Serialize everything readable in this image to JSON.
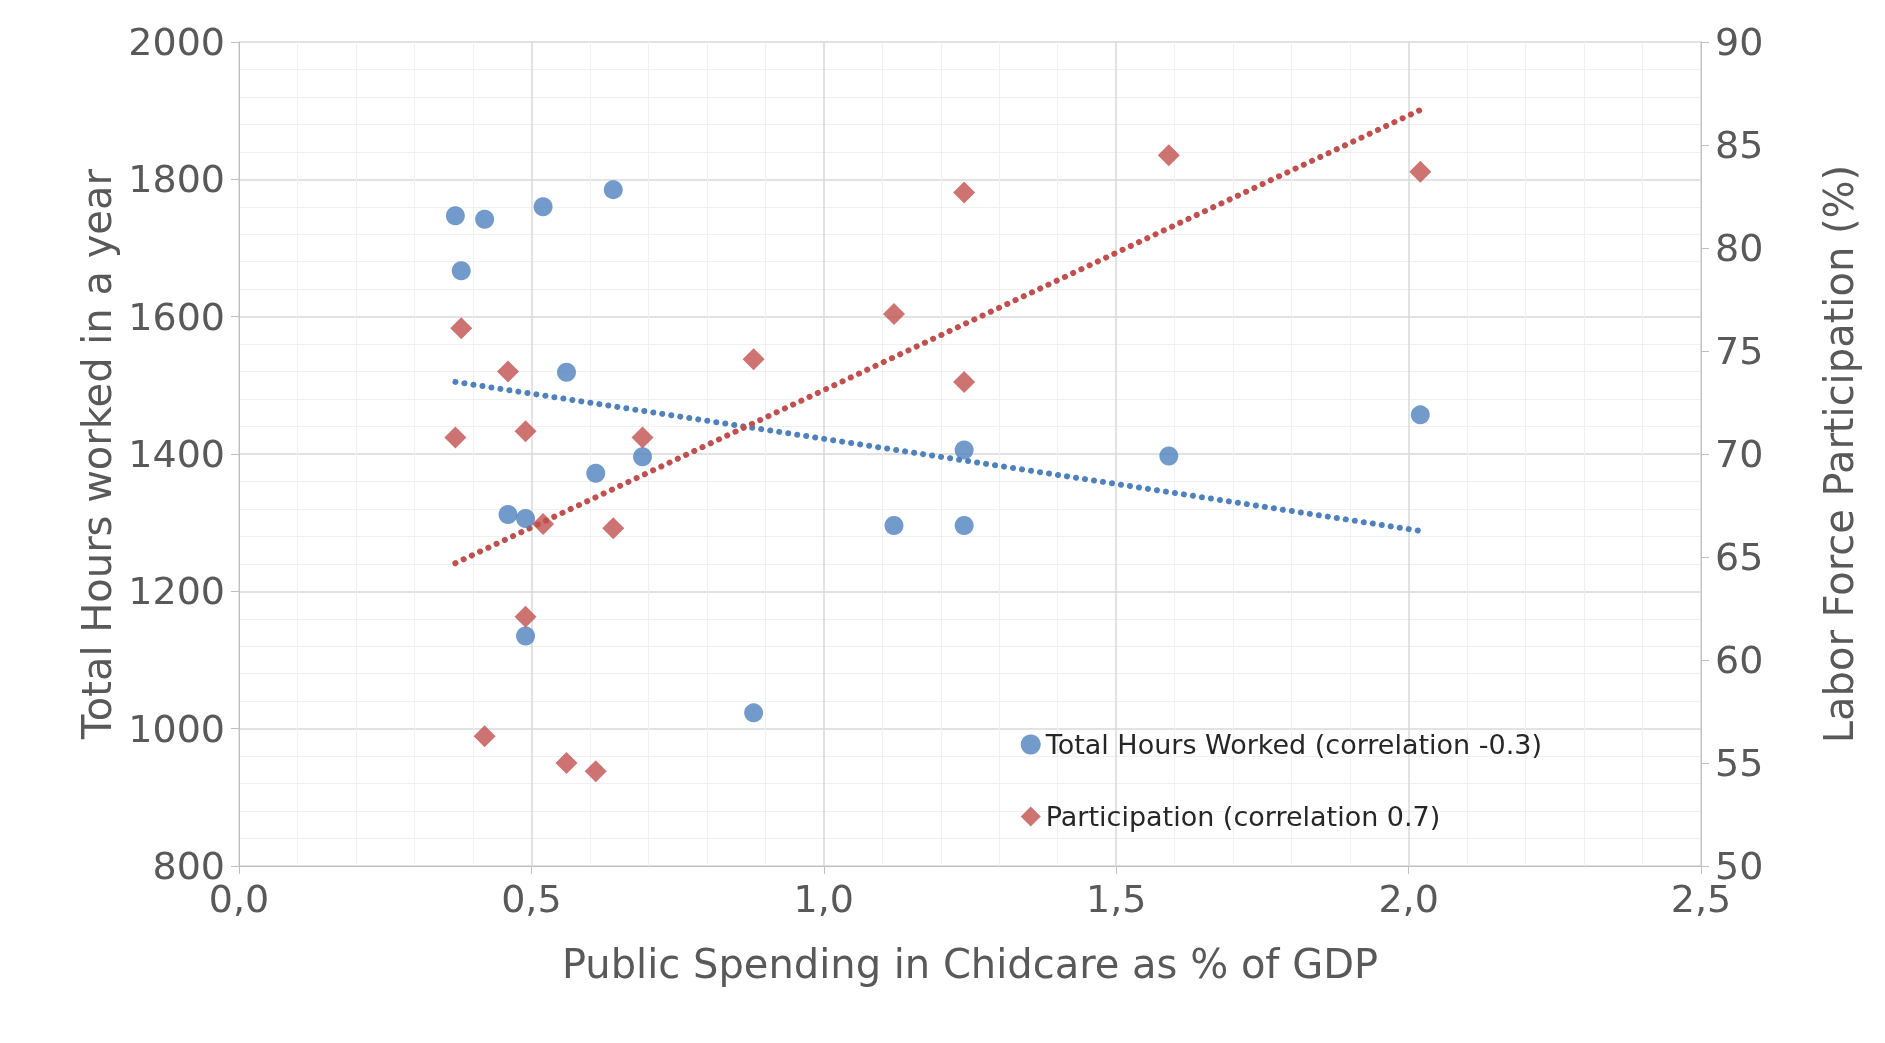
{
  "chart_data": {
    "type": "scatter",
    "xlabel": "Public Spending in Chidcare as % of GDP",
    "ylabel": "Total Hours worked in a year",
    "y2label": "Labor Force Participation (%)",
    "xlim": [
      0,
      2.5
    ],
    "xticks": [
      {
        "value": 0,
        "label": "0,0"
      },
      {
        "value": 0.5,
        "label": "0,5"
      },
      {
        "value": 1,
        "label": "1,0"
      },
      {
        "value": 1.5,
        "label": "1,5"
      },
      {
        "value": 2,
        "label": "2,0"
      },
      {
        "value": 2.5,
        "label": "2,5"
      }
    ],
    "ylim": [
      800,
      2000
    ],
    "yticks": [
      800,
      1000,
      1200,
      1400,
      1600,
      1800,
      2000
    ],
    "y2lim": [
      50,
      90
    ],
    "y2ticks": [
      50,
      55,
      60,
      65,
      70,
      75,
      80,
      85,
      90
    ],
    "grid": true,
    "legend": "bottom right",
    "series": [
      {
        "name": "Total Hours Worked (correlation -0.3)",
        "marker": "circle",
        "color": "#4f81bd",
        "x": [
          0.37,
          0.38,
          0.42,
          0.46,
          0.49,
          0.49,
          0.52,
          0.56,
          0.61,
          0.64,
          0.69,
          0.88,
          1.12,
          1.24,
          1.24,
          1.59,
          2.02
        ],
        "values": [
          1747,
          1667,
          1742,
          1312,
          1306,
          1135,
          1760,
          1519,
          1372,
          1785,
          1396,
          1023,
          1296,
          1296,
          1406,
          1397,
          1457
        ]
      },
      {
        "name": "Participation (correlation 0.7)",
        "marker": "diamond",
        "axis": "y2",
        "color": "#c0504d",
        "x": [
          0.37,
          0.38,
          0.42,
          0.46,
          0.49,
          0.49,
          0.52,
          0.56,
          0.61,
          0.64,
          0.69,
          0.88,
          1.12,
          1.24,
          1.24,
          1.59,
          2.02
        ],
        "values": [
          70.8,
          76.1,
          56.3,
          74.0,
          71.1,
          62.1,
          66.6,
          55.0,
          54.6,
          66.4,
          70.8,
          74.6,
          76.8,
          82.7,
          73.5,
          84.5,
          83.7
        ]
      },
      {
        "type": "line",
        "line_style": "dotted",
        "marker": "none",
        "color": "#4f81bd",
        "x": [
          0.37,
          2.02
        ],
        "values": [
          1505,
          1288
        ]
      },
      {
        "type": "line",
        "line_style": "dotted",
        "marker": "none",
        "axis": "y2",
        "color": "#c0504d",
        "x": [
          0.37,
          2.02
        ],
        "values": [
          64.7,
          86.7
        ]
      }
    ]
  }
}
